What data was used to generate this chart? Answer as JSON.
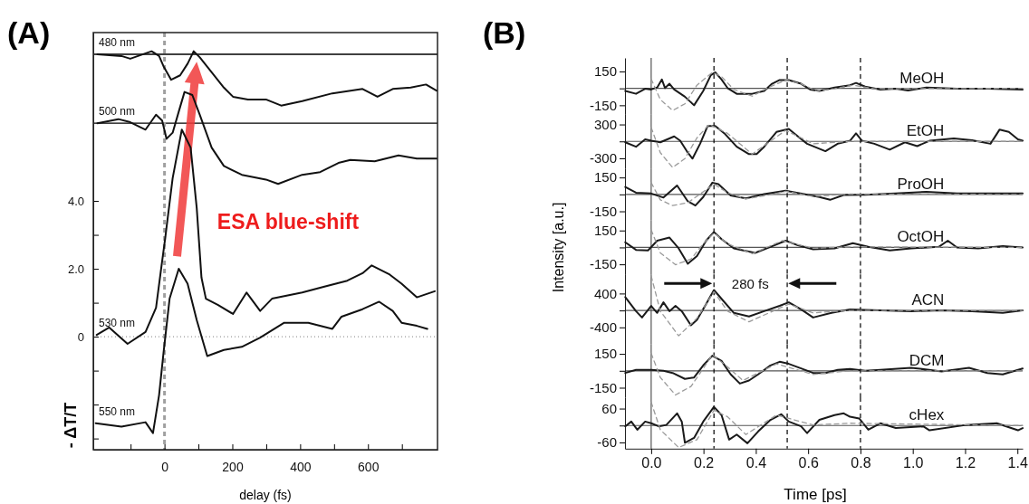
{
  "chart_data": [
    {
      "type": "line",
      "title": "(A)",
      "xlabel": "delay (fs)",
      "ylabel": "- ΔT/T",
      "xlim": [
        -210,
        805
      ],
      "ylim": [
        -3.33,
        8.96
      ],
      "xticks": [
        {
          "value": -100,
          "label": null
        },
        0,
        {
          "value": 100,
          "label": null
        },
        200,
        {
          "value": 300,
          "label": null
        },
        400,
        {
          "value": 500,
          "label": null
        },
        600,
        {
          "value": 700,
          "label": null
        }
      ],
      "yticks": [
        {
          "value": -3,
          "label": null
        },
        {
          "value": -2,
          "label": null
        },
        {
          "value": -1,
          "label": null
        },
        0,
        {
          "value": 1,
          "label": null
        },
        {
          "value": 2,
          "label": "2.0"
        },
        {
          "value": 3,
          "label": null
        },
        {
          "value": 4,
          "label": "4.0"
        }
      ],
      "ref_lines": [
        {
          "axis": "y",
          "value": 8.32,
          "color": "#000000"
        },
        {
          "axis": "y",
          "value": 6.29,
          "color": "#000000"
        },
        {
          "axis": "y",
          "value": 0,
          "color": "#999999",
          "line_style": "dotted"
        },
        {
          "axis": "x",
          "value": 0,
          "color": "#a0a0a0",
          "line_style": "dashed"
        }
      ],
      "annotations": [
        "ESA blue-shift"
      ],
      "series": [
        {
          "name": "480 nm",
          "color": "#111111",
          "x": [
            -198,
            -127,
            -101,
            -38,
            -16,
            -3,
            19.6,
            46,
            68.5,
            86,
            104,
            139,
            175,
            202,
            246,
            299,
            344,
            406,
            495,
            584,
            628,
            673,
            726,
            771,
            802
          ],
          "values": [
            8.32,
            8.27,
            8.19,
            8.41,
            8.27,
            7.97,
            7.57,
            7.7,
            8.05,
            8.41,
            8.23,
            7.79,
            7.34,
            7.07,
            6.99,
            6.99,
            6.81,
            6.94,
            7.17,
            7.3,
            7.07,
            7.3,
            7.34,
            7.43,
            7.25
          ]
        },
        {
          "name": "500 nm",
          "color": "#111111",
          "x": [
            -198,
            -136,
            -101,
            -56,
            -25,
            -7,
            6,
            24,
            42,
            59,
            82,
            104,
            139,
            175,
            228,
            299,
            335,
            406,
            459,
            513,
            548,
            620,
            690,
            744,
            802
          ],
          "values": [
            6.29,
            6.41,
            6.32,
            6.1,
            6.54,
            6.37,
            5.83,
            6.01,
            6.63,
            7.21,
            7.12,
            6.54,
            5.57,
            5.03,
            4.77,
            4.63,
            4.5,
            4.77,
            4.85,
            5.12,
            5.21,
            5.17,
            5.34,
            5.25,
            5.25
          ]
        },
        {
          "name": "530 nm",
          "color": "#111111",
          "x": [
            -200,
            -163,
            -109,
            -56,
            -25,
            -10,
            2,
            24,
            51,
            77,
            95,
            109,
            122,
            157,
            202,
            242,
            282,
            317,
            406,
            469,
            539,
            584,
            611,
            664,
            699,
            744,
            797
          ],
          "values": [
            0.05,
            0.27,
            -0.21,
            0.14,
            0.85,
            2.0,
            2.9,
            4.67,
            6.1,
            5.57,
            3.79,
            1.74,
            1.12,
            0.94,
            0.67,
            1.3,
            0.76,
            1.12,
            1.3,
            1.47,
            1.65,
            1.87,
            2.1,
            1.83,
            1.56,
            1.16,
            1.34
          ]
        },
        {
          "name": "550 nm",
          "color": "#111111",
          "x": [
            -203,
            -127,
            -56,
            -34,
            -16,
            -3,
            15,
            42,
            68,
            95,
            126,
            175,
            228,
            282,
            353,
            424,
            495,
            522,
            584,
            633,
            673,
            699,
            744,
            775
          ],
          "values": [
            -2.55,
            -2.65,
            -2.52,
            -2.84,
            -1.72,
            -0.48,
            1.12,
            2.0,
            1.56,
            0.49,
            -0.57,
            -0.39,
            -0.3,
            -0.03,
            0.41,
            0.41,
            0.23,
            0.59,
            0.81,
            1.03,
            0.76,
            0.41,
            0.32,
            0.23
          ]
        }
      ]
    },
    {
      "type": "line",
      "title": "(B)",
      "tick_labels": "y",
      "xlim": [
        -0.1,
        1.42
      ],
      "ylim": [
        -230,
        270
      ],
      "yticks": [
        -150,
        {
          "value": 0,
          "label": null
        },
        150
      ],
      "ref_lines": [
        {
          "axis": "y",
          "value": 0,
          "color": "#555555"
        },
        {
          "axis": "x",
          "value": 0,
          "color": "#555555"
        },
        {
          "axis": "x",
          "value": 0.24,
          "color": "#000000",
          "line_style": "dashed"
        },
        {
          "axis": "x",
          "value": 0.52,
          "color": "#000000",
          "line_style": "dashed"
        },
        {
          "axis": "x",
          "value": 0.8,
          "color": "#000000",
          "line_style": "dashed"
        }
      ],
      "series": [
        {
          "name": "MeOH",
          "color": "#1a1a1a",
          "x": [
            -0.099,
            -0.058,
            -0.023,
            0,
            0.023,
            0.041,
            0.053,
            0.07,
            0.088,
            0.129,
            0.164,
            0.199,
            0.228,
            0.245,
            0.269,
            0.292,
            0.327,
            0.386,
            0.432,
            0.462,
            0.491,
            0.526,
            0.573,
            0.608,
            0.643,
            0.701,
            0.76,
            0.783,
            0.818,
            0.876,
            0.935,
            0.982,
            1.052,
            1.169,
            1.285,
            1.42
          ],
          "values": [
            -23,
            -48,
            -3,
            -10,
            8,
            79,
            3,
            41,
            -10,
            -74,
            -150,
            -23,
            117,
            142,
            79,
            3,
            -48,
            -48,
            -23,
            41,
            74,
            74,
            41,
            -10,
            -23,
            8,
            28,
            48,
            15,
            -10,
            -3,
            -18,
            8,
            -3,
            -3,
            -10
          ]
        },
        {
          "color": "#9a9a9a",
          "line_style": "dashed",
          "x": [
            0,
            0.035,
            0.082,
            0.129,
            0.175,
            0.234,
            0.269,
            0.316,
            0.386,
            0.444,
            0.514,
            0.573,
            0.631,
            0.701,
            0.771,
            0.853,
            1.42
          ],
          "values": [
            84,
            -99,
            -196,
            -137,
            28,
            142,
            104,
            -10,
            -69,
            3,
            74,
            41,
            -23,
            -3,
            28,
            -3,
            0
          ]
        }
      ]
    },
    {
      "type": "line",
      "tick_labels": "y",
      "xlim": [
        -0.1,
        1.42
      ],
      "ylim": [
        -480,
        480
      ],
      "yticks": [
        -300,
        {
          "value": 0,
          "label": null
        },
        300
      ],
      "ref_lines": [
        {
          "axis": "y",
          "value": 0,
          "color": "#555555"
        },
        {
          "axis": "x",
          "value": 0,
          "color": "#555555"
        },
        {
          "axis": "x",
          "value": 0.24,
          "color": "#000000",
          "line_style": "dashed"
        },
        {
          "axis": "x",
          "value": 0.52,
          "color": "#000000",
          "line_style": "dashed"
        },
        {
          "axis": "x",
          "value": 0.8,
          "color": "#000000",
          "line_style": "dashed"
        }
      ],
      "series": [
        {
          "name": "EtOH",
          "color": "#1a1a1a",
          "x": [
            -0.099,
            -0.058,
            -0.023,
            0,
            0.035,
            0.088,
            0.111,
            0.14,
            0.158,
            0.187,
            0.216,
            0.245,
            0.28,
            0.327,
            0.374,
            0.403,
            0.432,
            0.479,
            0.526,
            0.561,
            0.596,
            0.666,
            0.713,
            0.76,
            0.783,
            0.806,
            0.853,
            0.912,
            0.97,
            1.017,
            1.064,
            1.157,
            1.227,
            1.297,
            1.332,
            1.367,
            1.402,
            1.42
          ],
          "values": [
            -16,
            -95,
            37,
            11,
            -16,
            89,
            11,
            -200,
            -305,
            -42,
            274,
            274,
            142,
            -95,
            -226,
            -226,
            -95,
            168,
            221,
            89,
            -42,
            -174,
            -42,
            11,
            142,
            11,
            -42,
            -147,
            -16,
            -84,
            11,
            53,
            21,
            -42,
            210,
            168,
            37,
            11
          ]
        },
        {
          "color": "#9a9a9a",
          "line_style": "dashed",
          "x": [
            0,
            0.035,
            0.082,
            0.129,
            0.175,
            0.222,
            0.292,
            0.386,
            0.514,
            0.619,
            0.76,
            1.42
          ],
          "values": [
            247,
            -200,
            -463,
            -305,
            63,
            300,
            142,
            -226,
            195,
            -42,
            0,
            0
          ]
        }
      ]
    },
    {
      "type": "line",
      "tick_labels": "y",
      "xlim": [
        -0.1,
        1.42
      ],
      "ylim": [
        -230,
        230
      ],
      "yticks": [
        -150,
        {
          "value": 0,
          "label": null
        },
        150
      ],
      "ref_lines": [
        {
          "axis": "y",
          "value": 0,
          "color": "#555555"
        },
        {
          "axis": "x",
          "value": 0,
          "color": "#555555"
        },
        {
          "axis": "x",
          "value": 0.24,
          "color": "#000000",
          "line_style": "dashed"
        },
        {
          "axis": "x",
          "value": 0.52,
          "color": "#000000",
          "line_style": "dashed"
        },
        {
          "axis": "x",
          "value": 0.8,
          "color": "#000000",
          "line_style": "dashed"
        }
      ],
      "series": [
        {
          "name": "ProOH",
          "color": "#1a1a1a",
          "x": [
            -0.099,
            -0.058,
            0,
            0.047,
            0.099,
            0.14,
            0.169,
            0.199,
            0.234,
            0.257,
            0.304,
            0.362,
            0.432,
            0.514,
            0.584,
            0.643,
            0.684,
            0.736,
            0.818,
            0.935,
            1.052,
            1.169,
            1.285,
            1.42
          ],
          "values": [
            66,
            15,
            8,
            -28,
            79,
            -61,
            -99,
            -23,
            104,
            91,
            -10,
            -36,
            3,
            33,
            3,
            -23,
            -48,
            -5,
            -3,
            8,
            23,
            8,
            8,
            8
          ]
        },
        {
          "color": "#9a9a9a",
          "line_style": "dashed",
          "x": [
            0,
            0.035,
            0.082,
            0.14,
            0.187,
            0.24,
            0.292,
            0.362,
            0.467,
            0.514,
            0.619,
            0.76,
            1.42
          ],
          "values": [
            104,
            -48,
            -99,
            -74,
            3,
            91,
            15,
            -41,
            3,
            28,
            -18,
            3,
            0
          ]
        }
      ]
    },
    {
      "type": "line",
      "ylabel": "Intensity  [a.u.]",
      "tick_labels": "y",
      "xlim": [
        -0.1,
        1.42
      ],
      "ylim": [
        -240,
        240
      ],
      "yticks": [
        -150,
        {
          "value": 0,
          "label": null
        },
        150
      ],
      "ref_lines": [
        {
          "axis": "y",
          "value": 0,
          "color": "#555555"
        },
        {
          "axis": "x",
          "value": 0,
          "color": "#555555"
        },
        {
          "axis": "x",
          "value": 0.24,
          "color": "#000000",
          "line_style": "dashed"
        },
        {
          "axis": "x",
          "value": 0.52,
          "color": "#000000",
          "line_style": "dashed"
        },
        {
          "axis": "x",
          "value": 0.8,
          "color": "#000000",
          "line_style": "dashed"
        }
      ],
      "series": [
        {
          "name": "OctOH",
          "color": "#1a1a1a",
          "x": [
            -0.099,
            -0.058,
            -0.012,
            0.023,
            0.07,
            0.105,
            0.14,
            0.175,
            0.21,
            0.24,
            0.269,
            0.316,
            0.397,
            0.456,
            0.514,
            0.561,
            0.619,
            0.701,
            0.771,
            0.83,
            0.912,
            0.994,
            1.099,
            1.134,
            1.169,
            1.25,
            1.344,
            1.42
          ],
          "values": [
            46,
            -22,
            -27,
            60,
            87,
            -8,
            -145,
            -76,
            60,
            137,
            74,
            -8,
            -49,
            5,
            60,
            19,
            -16,
            -8,
            38,
            5,
            -27,
            -8,
            5,
            60,
            0,
            -8,
            11,
            0
          ]
        },
        {
          "color": "#9a9a9a",
          "line_style": "dashed",
          "x": [
            0,
            0.035,
            0.093,
            0.152,
            0.199,
            0.24,
            0.292,
            0.386,
            0.502,
            0.619,
            0.76,
            1.42
          ],
          "values": [
            156,
            -49,
            -153,
            -104,
            33,
            128,
            33,
            -55,
            60,
            -8,
            5,
            0
          ]
        }
      ]
    },
    {
      "type": "line",
      "tick_labels": "y",
      "xlim": [
        -0.1,
        1.42
      ],
      "ylim": [
        -800,
        850
      ],
      "yticks": [
        -400,
        {
          "value": 0,
          "label": null
        },
        400
      ],
      "annotations": [
        "280 fs"
      ],
      "ref_lines": [
        {
          "axis": "y",
          "value": 0,
          "color": "#555555"
        },
        {
          "axis": "x",
          "value": 0,
          "color": "#555555"
        },
        {
          "axis": "x",
          "value": 0.24,
          "color": "#000000",
          "line_style": "dashed"
        },
        {
          "axis": "x",
          "value": 0.52,
          "color": "#000000",
          "line_style": "dashed"
        },
        {
          "axis": "x",
          "value": 0.8,
          "color": "#000000",
          "line_style": "dashed"
        }
      ],
      "series": [
        {
          "name": "ACN",
          "color": "#1a1a1a",
          "x": [
            -0.099,
            -0.058,
            -0.035,
            0,
            0.023,
            0.047,
            0.07,
            0.093,
            0.117,
            0.152,
            0.175,
            0.21,
            0.24,
            0.269,
            0.316,
            0.374,
            0.432,
            0.491,
            0.526,
            0.573,
            0.619,
            0.689,
            0.76,
            0.876,
            0.994,
            1.11,
            1.227,
            1.344,
            1.42
          ],
          "values": [
            317,
            -17,
            -167,
            108,
            -58,
            192,
            -17,
            108,
            -17,
            -350,
            -225,
            150,
            483,
            275,
            -58,
            -142,
            -17,
            108,
            192,
            25,
            -167,
            -58,
            25,
            0,
            -17,
            0,
            -17,
            -58,
            0
          ]
        },
        {
          "color": "#9a9a9a",
          "line_style": "dashed",
          "x": [
            0,
            0.035,
            0.105,
            0.175,
            0.24,
            0.292,
            0.374,
            0.526,
            0.619,
            0.76,
            1.42
          ],
          "values": [
            816,
            -17,
            -600,
            -183,
            442,
            -17,
            -267,
            150,
            -58,
            0,
            0
          ]
        }
      ]
    },
    {
      "type": "line",
      "tick_labels": "y",
      "xlim": [
        -0.1,
        1.42
      ],
      "ylim": [
        -235,
        235
      ],
      "yticks": [
        -150,
        {
          "value": 0,
          "label": null
        },
        150
      ],
      "ref_lines": [
        {
          "axis": "y",
          "value": 0,
          "color": "#555555"
        },
        {
          "axis": "x",
          "value": 0,
          "color": "#555555"
        },
        {
          "axis": "x",
          "value": 0.24,
          "color": "#000000",
          "line_style": "dashed"
        },
        {
          "axis": "x",
          "value": 0.52,
          "color": "#000000",
          "line_style": "dashed"
        },
        {
          "axis": "x",
          "value": 0.8,
          "color": "#000000",
          "line_style": "dashed"
        }
      ],
      "series": [
        {
          "name": "DCM",
          "color": "#1a1a1a",
          "x": [
            -0.099,
            -0.058,
            0,
            0.047,
            0.082,
            0.129,
            0.164,
            0.199,
            0.234,
            0.269,
            0.304,
            0.339,
            0.374,
            0.409,
            0.456,
            0.491,
            0.526,
            0.573,
            0.619,
            0.666,
            0.713,
            0.76,
            0.818,
            0.876,
            0.994,
            1.11,
            1.215,
            1.285,
            1.344,
            1.42
          ],
          "values": [
            -19,
            8,
            8,
            0,
            -19,
            -72,
            -59,
            48,
            134,
            88,
            -32,
            -113,
            -86,
            -32,
            48,
            80,
            62,
            21,
            -19,
            -19,
            8,
            16,
            0,
            8,
            27,
            -5,
            27,
            -19,
            -32,
            21
          ]
        },
        {
          "color": "#9a9a9a",
          "line_style": "dashed",
          "x": [
            0,
            0.035,
            0.093,
            0.152,
            0.199,
            0.234,
            0.292,
            0.351,
            0.479,
            0.619,
            0.76,
            1.42
          ],
          "values": [
            155,
            -59,
            -214,
            -139,
            21,
            142,
            35,
            -86,
            62,
            -32,
            0,
            0
          ]
        }
      ]
    },
    {
      "type": "line",
      "xlabel": "Time [ps]",
      "xlim": [
        -0.1,
        1.42
      ],
      "ylim": [
        -82,
        100
      ],
      "xticks": [
        {
          "value": 0,
          "label": "0.0"
        },
        {
          "value": 0.2,
          "label": "0.2"
        },
        {
          "value": 0.4,
          "label": "0.4"
        },
        {
          "value": 0.6,
          "label": "0.6"
        },
        {
          "value": 0.8,
          "label": "0.8"
        },
        {
          "value": 1,
          "label": "1.0"
        },
        {
          "value": 1.2,
          "label": "1.2"
        },
        {
          "value": 1.4,
          "label": "1.4"
        }
      ],
      "yticks": [
        -60,
        {
          "value": 0,
          "label": null
        },
        60
      ],
      "ref_lines": [
        {
          "axis": "y",
          "value": 0,
          "color": "#555555"
        },
        {
          "axis": "x",
          "value": 0,
          "color": "#555555"
        },
        {
          "axis": "x",
          "value": 0.24,
          "color": "#000000",
          "line_style": "dashed"
        },
        {
          "axis": "x",
          "value": 0.52,
          "color": "#000000",
          "line_style": "dashed"
        },
        {
          "axis": "x",
          "value": 0.8,
          "color": "#000000",
          "line_style": "dashed"
        }
      ],
      "series": [
        {
          "name": "cHex",
          "color": "#1a1a1a",
          "x": [
            -0.099,
            -0.076,
            -0.053,
            -0.023,
            0,
            0.029,
            0.058,
            0.099,
            0.117,
            0.129,
            0.164,
            0.199,
            0.24,
            0.269,
            0.298,
            0.327,
            0.368,
            0.409,
            0.456,
            0.497,
            0.526,
            0.573,
            0.596,
            0.643,
            0.701,
            0.736,
            0.76,
            0.795,
            0.83,
            0.876,
            0.935,
            1.04,
            1.064,
            1.204,
            1.321,
            1.402,
            1.42
          ],
          "values": [
            -3,
            14,
            -15,
            14,
            8,
            -3,
            2,
            43,
            14,
            -61,
            -44,
            14,
            66,
            37,
            -50,
            -32,
            -63,
            -21,
            20,
            40,
            14,
            -3,
            -27,
            20,
            37,
            43,
            31,
            25,
            -15,
            8,
            -9,
            -3,
            -17,
            2,
            8,
            -17,
            -9
          ]
        },
        {
          "color": "#9a9a9a",
          "line_style": "dashed",
          "x": [
            0,
            0.035,
            0.105,
            0.175,
            0.24,
            0.292,
            0.362,
            0.479,
            0.619,
            0.76,
            1.42
          ],
          "values": [
            83,
            -15,
            -78,
            -50,
            54,
            31,
            -32,
            37,
            2,
            8,
            0
          ]
        }
      ]
    }
  ]
}
